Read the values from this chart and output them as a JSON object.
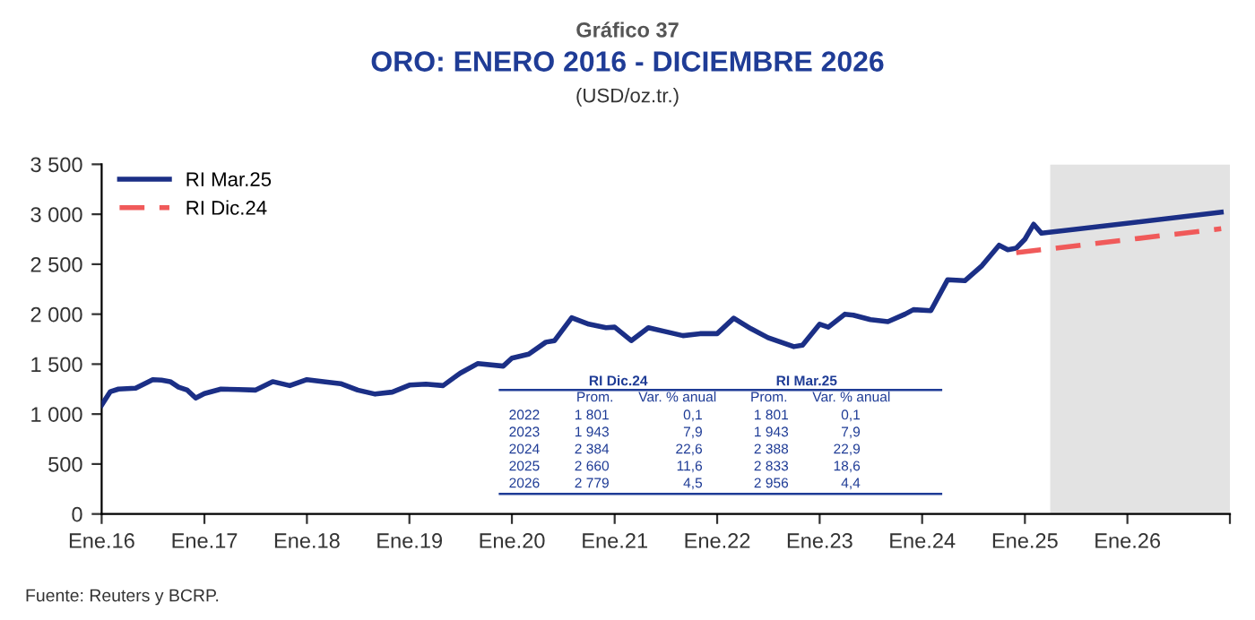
{
  "chart_data": {
    "type": "line",
    "title": "ORO: ENERO 2016 - DICIEMBRE 2026",
    "subtitle": "(USD/oz.tr.)",
    "annotations": [
      "Gráfico 37",
      "Fuente: Reuters y BCRP.",
      "RI Dic.24",
      "RI Mar.25",
      "Prom.",
      "Var. % anual",
      "Prom.",
      "Var. % anual",
      "2022",
      "1 801",
      "0,1",
      "1 801",
      "0,1",
      "2023",
      "1 943",
      "7,9",
      "1 943",
      "7,9",
      "2024",
      "2 384",
      "22,6",
      "2 388",
      "22,9",
      "2025",
      "2 660",
      "11,6",
      "2 833",
      "18,6",
      "2026",
      "2 779",
      "4,5",
      "2 956",
      "4,4"
    ],
    "series": [
      {
        "name": "RI Mar.25",
        "color": "#1b2f86",
        "line_style": "solid",
        "x": [
          "2016-01",
          "2016-02",
          "2016-03",
          "2016-05",
          "2016-07",
          "2016-08",
          "2016-09",
          "2016-10",
          "2016-11",
          "2016-12",
          "2017-01",
          "2017-03",
          "2017-05",
          "2017-07",
          "2017-09",
          "2017-11",
          "2018-01",
          "2018-03",
          "2018-05",
          "2018-07",
          "2018-09",
          "2018-11",
          "2019-01",
          "2019-03",
          "2019-05",
          "2019-07",
          "2019-09",
          "2019-12",
          "2020-01",
          "2020-03",
          "2020-05",
          "2020-06",
          "2020-08",
          "2020-10",
          "2020-12",
          "2021-01",
          "2021-03",
          "2021-05",
          "2021-07",
          "2021-09",
          "2021-11",
          "2022-01",
          "2022-03",
          "2022-05",
          "2022-07",
          "2022-10",
          "2022-11",
          "2023-01",
          "2023-02",
          "2023-04",
          "2023-05",
          "2023-07",
          "2023-09",
          "2023-11",
          "2023-12",
          "2024-02",
          "2024-04",
          "2024-06",
          "2024-08",
          "2024-10",
          "2024-11",
          "2024-12",
          "2025-01",
          "2025-02",
          "2025-03",
          "2026-12"
        ],
        "values": [
          1090,
          1225,
          1250,
          1260,
          1345,
          1340,
          1325,
          1270,
          1240,
          1160,
          1205,
          1250,
          1245,
          1240,
          1325,
          1285,
          1345,
          1325,
          1305,
          1240,
          1200,
          1220,
          1290,
          1300,
          1285,
          1410,
          1505,
          1480,
          1560,
          1600,
          1720,
          1735,
          1965,
          1900,
          1865,
          1870,
          1735,
          1865,
          1825,
          1785,
          1805,
          1805,
          1960,
          1855,
          1765,
          1675,
          1690,
          1900,
          1870,
          2000,
          1990,
          1945,
          1925,
          2000,
          2045,
          2035,
          2345,
          2335,
          2485,
          2690,
          2645,
          2660,
          2750,
          2900,
          2810,
          3020
        ]
      },
      {
        "name": "RI Dic.24",
        "color": "#f05a5a",
        "line_style": "dashed",
        "x": [
          "2024-12",
          "2026-12"
        ],
        "values": [
          2615,
          2855
        ]
      }
    ],
    "bands": [
      {
        "axis": "x",
        "from": "2025-04",
        "to": "2027-01",
        "color": "#e3e3e3"
      }
    ],
    "xlim": [
      "2016-01",
      "2027-01"
    ],
    "xticks": [
      {
        "value": "2016-01",
        "label": "Ene.16"
      },
      {
        "value": "2017-01",
        "label": "Ene.17"
      },
      {
        "value": "2018-01",
        "label": "Ene.18"
      },
      {
        "value": "2019-01",
        "label": "Ene.19"
      },
      {
        "value": "2020-01",
        "label": "Ene.20"
      },
      {
        "value": "2021-01",
        "label": "Ene.21"
      },
      {
        "value": "2022-01",
        "label": "Ene.22"
      },
      {
        "value": "2023-01",
        "label": "Ene.23"
      },
      {
        "value": "2024-01",
        "label": "Ene.24"
      },
      {
        "value": "2025-01",
        "label": "Ene.25"
      },
      {
        "value": "2026-01",
        "label": "Ene.26"
      },
      {
        "value": "2027-01",
        "label": null
      }
    ],
    "ylim": [
      0,
      3500
    ],
    "yticks": [
      0,
      500,
      {
        "value": 1000,
        "label": "1 000"
      },
      {
        "value": 1500,
        "label": "1 500"
      },
      {
        "value": 2000,
        "label": "2 000"
      },
      {
        "value": 2500,
        "label": "2 500"
      },
      {
        "value": 3000,
        "label": "3 000"
      },
      {
        "value": 3500,
        "label": "3 500"
      }
    ],
    "grid": false,
    "legend": "top left",
    "marker": "none"
  }
}
